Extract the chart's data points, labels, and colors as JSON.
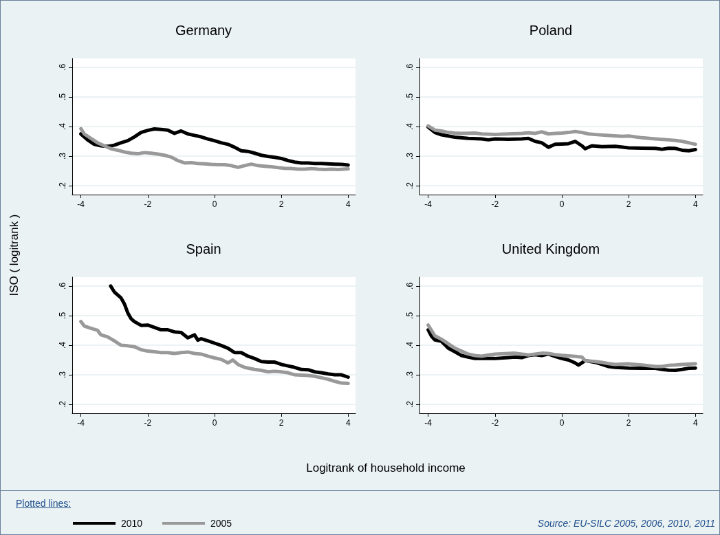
{
  "chart_data": [
    {
      "type": "line",
      "title": "Germany",
      "ylabel": "ISO ( logitrank )",
      "xlabel": "Logitrank of household income",
      "legend": "bottom",
      "legend_title": "Plotted lines:",
      "annotations": [
        "Source: EU-SILC 2005, 2006, 2010, 2011"
      ],
      "xlim": [
        -4.26,
        4.22
      ],
      "ylim": [
        0.17,
        0.63
      ],
      "xticks": [
        -4,
        -2,
        0,
        2,
        4
      ],
      "yticks": [
        {
          "value": 0.2,
          "label": ".2"
        },
        {
          "value": 0.3,
          "label": ".3"
        },
        {
          "value": 0.4,
          "label": ".4"
        },
        {
          "value": 0.5,
          "label": ".5"
        },
        {
          "value": 0.6,
          "label": ".6"
        }
      ],
      "grid": "y",
      "marker": "none",
      "line_style": "solid",
      "series": [
        {
          "name": "2010",
          "color": "#000000",
          "x": [
            -4,
            -3.8,
            -3.6,
            -3.4,
            -3.2,
            -3,
            -2.8,
            -2.6,
            -2.4,
            -2.2,
            -2,
            -1.8,
            -1.6,
            -1.4,
            -1.2,
            -1,
            -0.8,
            -0.6,
            -0.4,
            -0.2,
            0,
            0.2,
            0.4,
            0.6,
            0.8,
            1,
            1.2,
            1.4,
            1.6,
            1.8,
            2,
            2.2,
            2.4,
            2.6,
            2.8,
            3,
            3.2,
            3.4,
            3.6,
            3.8,
            4
          ],
          "values": [
            0.375,
            0.355,
            0.34,
            0.335,
            0.333,
            0.337,
            0.345,
            0.352,
            0.365,
            0.38,
            0.387,
            0.392,
            0.39,
            0.388,
            0.377,
            0.385,
            0.375,
            0.37,
            0.365,
            0.358,
            0.352,
            0.345,
            0.34,
            0.33,
            0.318,
            0.316,
            0.31,
            0.303,
            0.299,
            0.296,
            0.292,
            0.285,
            0.28,
            0.277,
            0.277,
            0.275,
            0.275,
            0.274,
            0.273,
            0.272,
            0.27
          ]
        },
        {
          "name": "2005",
          "color": "#999999",
          "x": [
            -4,
            -3.9,
            -3.7,
            -3.5,
            -3.3,
            -3.1,
            -2.9,
            -2.7,
            -2.5,
            -2.3,
            -2.1,
            -1.9,
            -1.7,
            -1.5,
            -1.3,
            -1.1,
            -0.9,
            -0.7,
            -0.5,
            -0.3,
            -0.1,
            0.1,
            0.3,
            0.5,
            0.7,
            0.9,
            1.1,
            1.3,
            1.5,
            1.7,
            1.9,
            2.1,
            2.3,
            2.5,
            2.7,
            2.9,
            3.1,
            3.3,
            3.5,
            3.7,
            4
          ],
          "values": [
            0.393,
            0.375,
            0.36,
            0.345,
            0.335,
            0.325,
            0.32,
            0.314,
            0.31,
            0.308,
            0.312,
            0.31,
            0.307,
            0.303,
            0.297,
            0.285,
            0.277,
            0.278,
            0.275,
            0.274,
            0.272,
            0.271,
            0.271,
            0.268,
            0.262,
            0.268,
            0.273,
            0.268,
            0.266,
            0.264,
            0.261,
            0.259,
            0.258,
            0.256,
            0.256,
            0.258,
            0.256,
            0.255,
            0.256,
            0.255,
            0.257
          ]
        }
      ]
    },
    {
      "type": "line",
      "title": "Poland",
      "xlim": [
        -4.26,
        4.22
      ],
      "ylim": [
        0.17,
        0.63
      ],
      "xticks": [
        -4,
        -2,
        0,
        2,
        4
      ],
      "yticks": [
        {
          "value": 0.2,
          "label": ".2"
        },
        {
          "value": 0.3,
          "label": ".3"
        },
        {
          "value": 0.4,
          "label": ".4"
        },
        {
          "value": 0.5,
          "label": ".5"
        },
        {
          "value": 0.6,
          "label": ".6"
        }
      ],
      "grid": "y",
      "marker": "none",
      "line_style": "solid",
      "series": [
        {
          "name": "2010",
          "color": "#000000",
          "x": [
            -4,
            -3.8,
            -3.6,
            -3.4,
            -3.2,
            -2.8,
            -2.4,
            -2.2,
            -2,
            -1.6,
            -1.2,
            -1,
            -0.8,
            -0.6,
            -0.4,
            -0.2,
            0,
            0.2,
            0.4,
            0.6,
            0.7,
            0.9,
            1.2,
            1.6,
            2,
            2.4,
            2.8,
            3,
            3.2,
            3.4,
            3.6,
            3.8,
            4
          ],
          "values": [
            0.398,
            0.38,
            0.372,
            0.368,
            0.364,
            0.36,
            0.358,
            0.355,
            0.358,
            0.357,
            0.358,
            0.36,
            0.35,
            0.345,
            0.33,
            0.34,
            0.341,
            0.342,
            0.35,
            0.335,
            0.325,
            0.335,
            0.332,
            0.333,
            0.328,
            0.327,
            0.326,
            0.323,
            0.327,
            0.326,
            0.32,
            0.318,
            0.322
          ]
        },
        {
          "name": "2005",
          "color": "#999999",
          "x": [
            -4,
            -3.8,
            -3.6,
            -3.4,
            -3.2,
            -3,
            -2.6,
            -2.4,
            -2,
            -1.6,
            -1.2,
            -1,
            -0.8,
            -0.6,
            -0.4,
            -0.2,
            0,
            0.2,
            0.4,
            0.6,
            0.8,
            1,
            1.4,
            1.8,
            2,
            2.4,
            2.8,
            3.2,
            3.4,
            3.6,
            3.8,
            4
          ],
          "values": [
            0.402,
            0.388,
            0.385,
            0.38,
            0.378,
            0.377,
            0.378,
            0.375,
            0.373,
            0.375,
            0.377,
            0.379,
            0.377,
            0.382,
            0.375,
            0.377,
            0.378,
            0.38,
            0.383,
            0.38,
            0.375,
            0.373,
            0.37,
            0.367,
            0.368,
            0.362,
            0.358,
            0.355,
            0.353,
            0.35,
            0.345,
            0.34
          ]
        }
      ]
    },
    {
      "type": "line",
      "title": "Spain",
      "xlim": [
        -4.26,
        4.22
      ],
      "ylim": [
        0.17,
        0.63
      ],
      "xticks": [
        -4,
        -2,
        0,
        2,
        4
      ],
      "yticks": [
        {
          "value": 0.2,
          "label": ".2"
        },
        {
          "value": 0.3,
          "label": ".3"
        },
        {
          "value": 0.4,
          "label": ".4"
        },
        {
          "value": 0.5,
          "label": ".5"
        },
        {
          "value": 0.6,
          "label": ".6"
        }
      ],
      "grid": "y",
      "marker": "none",
      "line_style": "solid",
      "series": [
        {
          "name": "2010",
          "color": "#000000",
          "x": [
            -3.11,
            -3,
            -2.9,
            -2.8,
            -2.7,
            -2.6,
            -2.5,
            -2.4,
            -2.2,
            -2,
            -1.8,
            -1.6,
            -1.4,
            -1.2,
            -1,
            -0.8,
            -0.6,
            -0.5,
            -0.4,
            -0.2,
            0,
            0.2,
            0.4,
            0.6,
            0.8,
            1,
            1.2,
            1.4,
            1.6,
            1.8,
            2,
            2.2,
            2.4,
            2.6,
            2.8,
            3,
            3.2,
            3.4,
            3.6,
            3.8,
            4
          ],
          "values": [
            0.6,
            0.58,
            0.57,
            0.56,
            0.54,
            0.51,
            0.49,
            0.48,
            0.467,
            0.468,
            0.46,
            0.452,
            0.452,
            0.445,
            0.443,
            0.425,
            0.435,
            0.417,
            0.422,
            0.415,
            0.407,
            0.399,
            0.39,
            0.375,
            0.375,
            0.363,
            0.355,
            0.345,
            0.343,
            0.343,
            0.335,
            0.33,
            0.325,
            0.318,
            0.317,
            0.31,
            0.307,
            0.303,
            0.3,
            0.3,
            0.292
          ]
        },
        {
          "name": "2005",
          "color": "#999999",
          "x": [
            -4,
            -3.9,
            -3.7,
            -3.5,
            -3.4,
            -3.2,
            -3,
            -2.8,
            -2.6,
            -2.4,
            -2.2,
            -2,
            -1.8,
            -1.6,
            -1.4,
            -1.2,
            -1,
            -0.8,
            -0.6,
            -0.4,
            -0.2,
            0,
            0.2,
            0.4,
            0.55,
            0.7,
            0.9,
            1.2,
            1.4,
            1.6,
            1.8,
            2,
            2.2,
            2.4,
            2.6,
            2.8,
            3,
            3.2,
            3.4,
            3.6,
            3.8,
            4
          ],
          "values": [
            0.48,
            0.465,
            0.457,
            0.45,
            0.435,
            0.428,
            0.415,
            0.4,
            0.398,
            0.395,
            0.385,
            0.38,
            0.378,
            0.375,
            0.375,
            0.372,
            0.375,
            0.377,
            0.372,
            0.37,
            0.363,
            0.357,
            0.352,
            0.34,
            0.35,
            0.335,
            0.325,
            0.318,
            0.315,
            0.31,
            0.312,
            0.31,
            0.307,
            0.3,
            0.299,
            0.298,
            0.295,
            0.29,
            0.285,
            0.278,
            0.272,
            0.271
          ]
        }
      ]
    },
    {
      "type": "line",
      "title": "United Kingdom",
      "xlim": [
        -4.26,
        4.22
      ],
      "ylim": [
        0.17,
        0.63
      ],
      "xticks": [
        -4,
        -2,
        0,
        2,
        4
      ],
      "yticks": [
        {
          "value": 0.2,
          "label": ".2"
        },
        {
          "value": 0.3,
          "label": ".3"
        },
        {
          "value": 0.4,
          "label": ".4"
        },
        {
          "value": 0.5,
          "label": ".5"
        },
        {
          "value": 0.6,
          "label": ".6"
        }
      ],
      "grid": "y",
      "marker": "none",
      "line_style": "solid",
      "series": [
        {
          "name": "2010",
          "color": "#000000",
          "x": [
            -4,
            -3.9,
            -3.8,
            -3.6,
            -3.4,
            -3.2,
            -3,
            -2.8,
            -2.6,
            -2.2,
            -2,
            -1.6,
            -1.4,
            -1.2,
            -1,
            -0.8,
            -0.6,
            -0.4,
            -0.2,
            0,
            0.2,
            0.4,
            0.5,
            0.7,
            1,
            1.2,
            1.4,
            1.6,
            2,
            2.4,
            2.8,
            3,
            3.2,
            3.4,
            3.6,
            3.8,
            4
          ],
          "values": [
            0.452,
            0.43,
            0.418,
            0.413,
            0.39,
            0.378,
            0.365,
            0.36,
            0.355,
            0.355,
            0.355,
            0.358,
            0.36,
            0.358,
            0.365,
            0.368,
            0.365,
            0.37,
            0.362,
            0.355,
            0.35,
            0.34,
            0.333,
            0.348,
            0.342,
            0.335,
            0.328,
            0.325,
            0.323,
            0.322,
            0.322,
            0.318,
            0.316,
            0.315,
            0.318,
            0.322,
            0.323
          ]
        },
        {
          "name": "2005",
          "color": "#999999",
          "x": [
            -4,
            -3.9,
            -3.8,
            -3.6,
            -3.4,
            -3.2,
            -3,
            -2.8,
            -2.6,
            -2.4,
            -2.2,
            -2,
            -1.6,
            -1.4,
            -1.2,
            -1,
            -0.8,
            -0.6,
            -0.4,
            -0.2,
            0,
            0.2,
            0.4,
            0.6,
            0.7,
            1,
            1.2,
            1.4,
            1.6,
            2,
            2.4,
            2.8,
            3,
            3.2,
            3.4,
            3.6,
            3.8,
            4
          ],
          "values": [
            0.468,
            0.45,
            0.432,
            0.42,
            0.405,
            0.39,
            0.38,
            0.37,
            0.365,
            0.363,
            0.367,
            0.37,
            0.372,
            0.373,
            0.37,
            0.367,
            0.37,
            0.373,
            0.372,
            0.368,
            0.366,
            0.364,
            0.362,
            0.36,
            0.348,
            0.345,
            0.342,
            0.338,
            0.335,
            0.337,
            0.333,
            0.328,
            0.328,
            0.332,
            0.333,
            0.335,
            0.336,
            0.337
          ]
        }
      ]
    }
  ]
}
